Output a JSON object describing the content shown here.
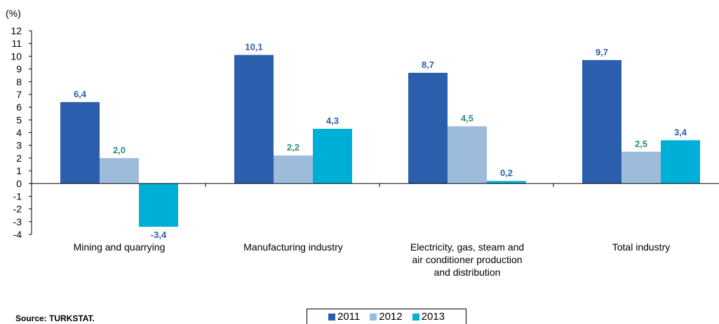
{
  "chart_data": {
    "type": "bar",
    "unit_label": "(%)",
    "categories": [
      "Mining and quarrying",
      "Manufacturing industry",
      "Electricity, gas, steam and|air conditioner production|and distribution",
      "Total industry"
    ],
    "series": [
      {
        "name": "2011",
        "color": "#2b5ead",
        "label_color": "#2b5ead",
        "values": [
          6.4,
          10.1,
          8.7,
          9.7
        ],
        "labels": [
          "6,4",
          "10,1",
          "8,7",
          "9,7"
        ]
      },
      {
        "name": "2012",
        "color": "#9dbcdb",
        "label_color": "#2e8a86",
        "values": [
          2.0,
          2.2,
          4.5,
          2.5
        ],
        "labels": [
          "2,0",
          "2,2",
          "4,5",
          "2,5"
        ]
      },
      {
        "name": "2013",
        "color": "#00afd6",
        "label_color": "#2b5ead",
        "values": [
          -3.4,
          4.3,
          0.2,
          3.4
        ],
        "labels": [
          "-3,4",
          "4,3",
          "0,2",
          "3,4"
        ]
      }
    ],
    "ylim": [
      -4,
      12
    ],
    "yticks": [
      12,
      11,
      10,
      9,
      8,
      7,
      6,
      5,
      4,
      3,
      2,
      1,
      0,
      -1,
      -2,
      -3,
      -4
    ],
    "grid": false,
    "legend_position": "bottom-center"
  },
  "source": "Source: TURKSTAT."
}
